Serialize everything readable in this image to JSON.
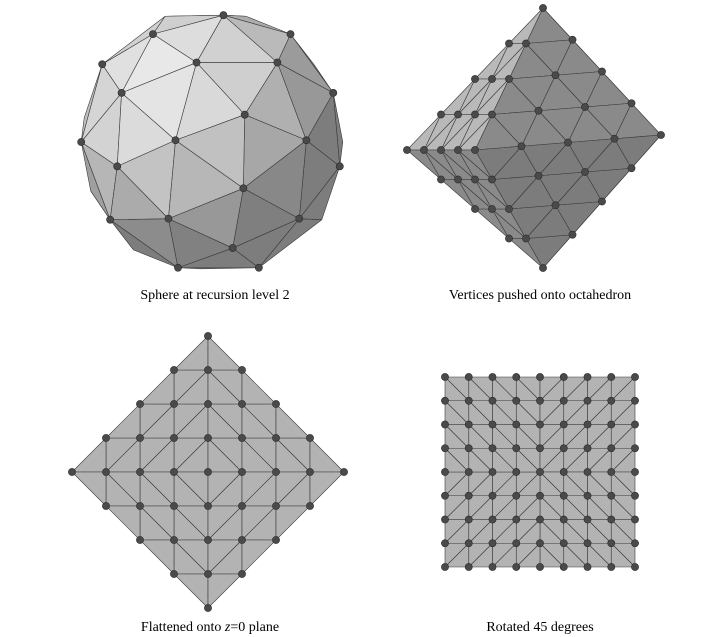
{
  "figure": {
    "panels": [
      {
        "id": "sphere",
        "caption": "Sphere at recursion level 2"
      },
      {
        "id": "octahedron",
        "caption": "Vertices pushed onto octahedron"
      },
      {
        "id": "flattened",
        "caption_prefix": "Flattened onto ",
        "caption_var": "z",
        "caption_suffix": "=0 plane"
      },
      {
        "id": "rotated",
        "caption": "Rotated 45 degrees"
      }
    ],
    "colors": {
      "background": "#ffffff",
      "face_light": "#e4e4e4",
      "face_mid": "#b9b9b9",
      "face_dark": "#8a8a8a",
      "face_darker": "#6e6e6e",
      "flat_fill": "#b3b3b3",
      "edge": "#3a3a3a",
      "vertex": "#4a4a4a"
    }
  }
}
